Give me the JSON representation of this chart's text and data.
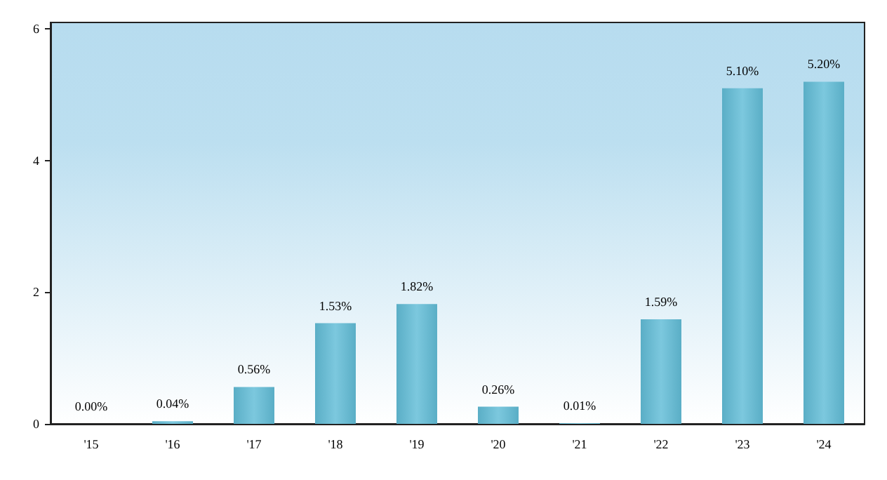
{
  "chart_data": {
    "type": "bar",
    "categories": [
      "'15",
      "'16",
      "'17",
      "'18",
      "'19",
      "'20",
      "'21",
      "'22",
      "'23",
      "'24"
    ],
    "values": [
      0.0,
      0.04,
      0.56,
      1.53,
      1.82,
      0.26,
      0.01,
      1.59,
      5.1,
      5.2
    ],
    "value_labels": [
      "0.00%",
      "0.04%",
      "0.56%",
      "1.53%",
      "1.82%",
      "0.26%",
      "0.01%",
      "1.59%",
      "5.10%",
      "5.20%"
    ],
    "color": "#5aaec6",
    "ylim": [
      0,
      6.1
    ],
    "yticks": [
      0,
      2,
      4,
      6
    ],
    "grid": false
  }
}
